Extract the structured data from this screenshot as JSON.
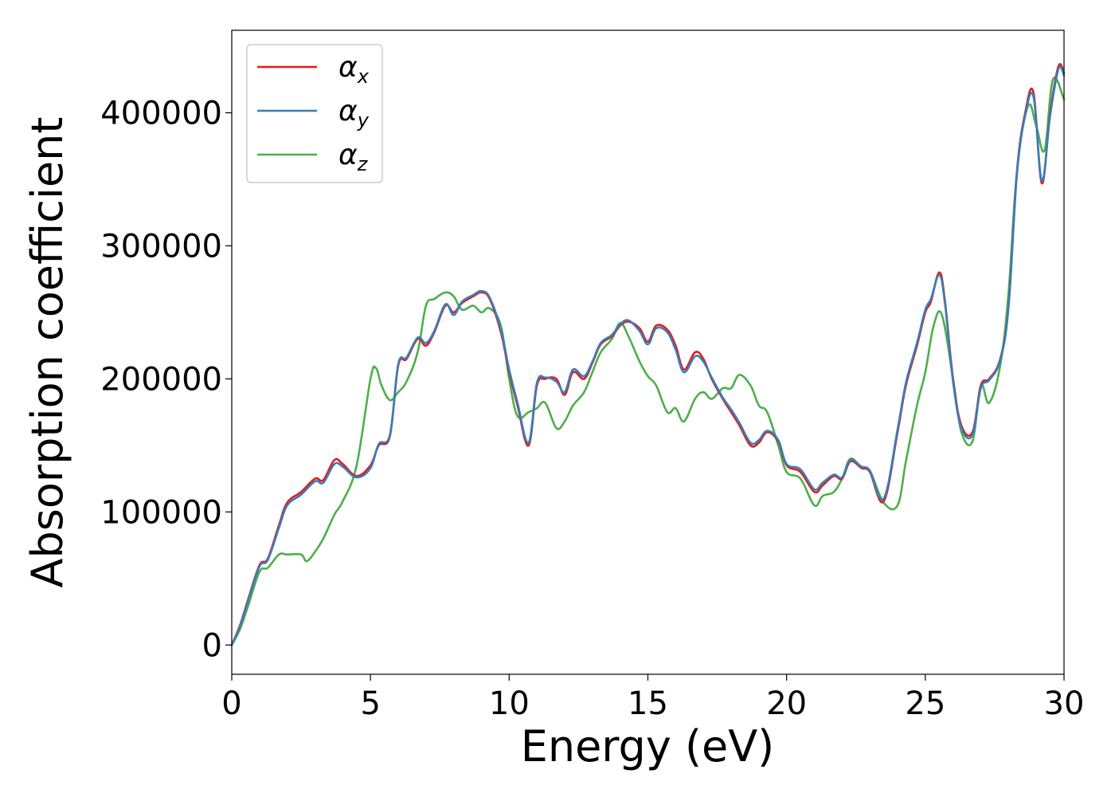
{
  "chart_data": {
    "type": "line",
    "xlabel": "Energy (eV)",
    "ylabel": "Absorption coefficient",
    "xlim": [
      0,
      30
    ],
    "ylim": [
      -22000,
      462000
    ],
    "xticks": [
      0,
      5,
      10,
      15,
      20,
      25,
      30
    ],
    "xtick_labels": [
      "0",
      "5",
      "10",
      "15",
      "20",
      "25",
      "30"
    ],
    "yticks": [
      0,
      100000,
      200000,
      300000,
      400000
    ],
    "ytick_labels": [
      "0",
      "100000",
      "200000",
      "300000",
      "400000"
    ],
    "legend_position": "upper-left",
    "grid": false,
    "series": [
      {
        "name": "αx",
        "symbol": "α",
        "subscript": "x",
        "color": "#e41a1c",
        "x": [
          0,
          0.3,
          0.6,
          1.0,
          1.3,
          1.7,
          2.0,
          2.5,
          3.0,
          3.3,
          3.7,
          4.0,
          4.5,
          5.0,
          5.3,
          5.7,
          6.0,
          6.3,
          6.7,
          7.0,
          7.3,
          7.7,
          8.0,
          8.3,
          8.7,
          9.0,
          9.3,
          9.7,
          10.0,
          10.3,
          10.7,
          11.0,
          11.3,
          11.7,
          12.0,
          12.3,
          12.7,
          13.0,
          13.3,
          13.7,
          14.0,
          14.3,
          14.7,
          15.0,
          15.3,
          15.7,
          16.0,
          16.3,
          16.7,
          17.0,
          17.3,
          17.7,
          18.0,
          18.3,
          18.7,
          19.0,
          19.3,
          19.7,
          20.0,
          20.5,
          21.0,
          21.3,
          21.7,
          22.0,
          22.3,
          22.7,
          23.0,
          23.5,
          24.0,
          24.3,
          24.7,
          25.0,
          25.2,
          25.5,
          25.7,
          26.0,
          26.3,
          26.7,
          27.0,
          27.3,
          27.7,
          28.0,
          28.3,
          28.6,
          28.9,
          29.2,
          29.5,
          29.8,
          30.0
        ],
        "values": [
          0,
          15000,
          35000,
          60000,
          65000,
          90000,
          107000,
          115000,
          125000,
          124000,
          139000,
          136000,
          127000,
          135000,
          150000,
          157000,
          210000,
          215000,
          230000,
          225000,
          235000,
          255000,
          250000,
          257000,
          262000,
          265000,
          260000,
          235000,
          205000,
          180000,
          150000,
          195000,
          200000,
          200000,
          188000,
          205000,
          200000,
          212000,
          226000,
          232000,
          240000,
          243000,
          238000,
          228000,
          240000,
          237000,
          225000,
          207000,
          220000,
          215000,
          200000,
          185000,
          175000,
          165000,
          150000,
          152000,
          160000,
          153000,
          135000,
          130000,
          115000,
          120000,
          127000,
          125000,
          138000,
          133000,
          130000,
          108000,
          160000,
          195000,
          225000,
          250000,
          258000,
          280000,
          260000,
          200000,
          165000,
          160000,
          195000,
          200000,
          215000,
          255000,
          355000,
          400000,
          415000,
          347000,
          400000,
          435000,
          430000
        ]
      },
      {
        "name": "αy",
        "symbol": "α",
        "subscript": "y",
        "color": "#377eb8",
        "x": [
          0,
          0.3,
          0.6,
          1.0,
          1.3,
          1.7,
          2.0,
          2.5,
          3.0,
          3.3,
          3.7,
          4.0,
          4.5,
          5.0,
          5.3,
          5.7,
          6.0,
          6.3,
          6.7,
          7.0,
          7.3,
          7.7,
          8.0,
          8.3,
          8.7,
          9.0,
          9.3,
          9.7,
          10.0,
          10.3,
          10.7,
          11.0,
          11.3,
          11.7,
          12.0,
          12.3,
          12.7,
          13.0,
          13.3,
          13.7,
          14.0,
          14.3,
          14.7,
          15.0,
          15.3,
          15.7,
          16.0,
          16.3,
          16.7,
          17.0,
          17.3,
          17.7,
          18.0,
          18.3,
          18.7,
          19.0,
          19.3,
          19.7,
          20.0,
          20.5,
          21.0,
          21.3,
          21.7,
          22.0,
          22.3,
          22.7,
          23.0,
          23.5,
          24.0,
          24.3,
          24.7,
          25.0,
          25.2,
          25.5,
          25.7,
          26.0,
          26.3,
          26.7,
          27.0,
          27.3,
          27.7,
          28.0,
          28.3,
          28.6,
          28.9,
          29.2,
          29.5,
          29.8,
          30.0
        ],
        "values": [
          0,
          14000,
          34000,
          59000,
          64000,
          88000,
          105000,
          113000,
          123000,
          122000,
          136000,
          134000,
          126000,
          133000,
          151000,
          158000,
          211000,
          216000,
          231000,
          227000,
          236000,
          256000,
          248000,
          258000,
          263000,
          266000,
          261000,
          237000,
          207000,
          182000,
          152000,
          197000,
          201000,
          198000,
          190000,
          207000,
          202000,
          213000,
          227000,
          233000,
          241000,
          244000,
          236000,
          226000,
          238000,
          235000,
          222000,
          205000,
          217000,
          213000,
          201000,
          186000,
          177000,
          167000,
          152000,
          154000,
          161000,
          154000,
          136000,
          132000,
          117000,
          122000,
          128000,
          126000,
          139000,
          134000,
          131000,
          110000,
          162000,
          197000,
          227000,
          252000,
          260000,
          278000,
          258000,
          198000,
          163000,
          158000,
          193000,
          199000,
          214000,
          254000,
          353000,
          398000,
          412000,
          349000,
          398000,
          433000,
          428000
        ]
      },
      {
        "name": "αz",
        "symbol": "α",
        "subscript": "z",
        "color": "#4daf4a",
        "x": [
          0,
          0.3,
          0.6,
          1.0,
          1.3,
          1.7,
          2.0,
          2.5,
          2.7,
          3.0,
          3.3,
          3.7,
          4.0,
          4.5,
          5.0,
          5.2,
          5.4,
          5.7,
          6.0,
          6.3,
          6.7,
          7.0,
          7.3,
          7.7,
          8.0,
          8.3,
          8.7,
          9.0,
          9.3,
          9.7,
          10.0,
          10.3,
          10.7,
          11.0,
          11.3,
          11.7,
          12.0,
          12.3,
          12.7,
          13.0,
          13.3,
          13.7,
          14.0,
          14.3,
          14.7,
          15.0,
          15.3,
          15.7,
          16.0,
          16.3,
          16.7,
          17.0,
          17.3,
          17.7,
          18.0,
          18.3,
          18.7,
          19.0,
          19.3,
          19.7,
          20.0,
          20.5,
          21.0,
          21.3,
          21.7,
          22.0,
          22.3,
          22.7,
          23.0,
          23.5,
          24.0,
          24.3,
          24.7,
          25.0,
          25.3,
          25.6,
          26.0,
          26.3,
          26.7,
          27.0,
          27.3,
          27.7,
          28.0,
          28.3,
          28.7,
          29.0,
          29.3,
          29.6,
          30.0
        ],
        "values": [
          0,
          12000,
          30000,
          55000,
          58000,
          68000,
          68000,
          68000,
          63000,
          70000,
          80000,
          98000,
          108000,
          135000,
          200000,
          208000,
          195000,
          184000,
          190000,
          198000,
          220000,
          255000,
          260000,
          265000,
          262000,
          252000,
          255000,
          250000,
          253000,
          240000,
          200000,
          172000,
          175000,
          178000,
          182000,
          163000,
          168000,
          180000,
          190000,
          205000,
          220000,
          230000,
          242000,
          232000,
          213000,
          202000,
          195000,
          175000,
          178000,
          168000,
          185000,
          190000,
          185000,
          193000,
          193000,
          203000,
          195000,
          180000,
          175000,
          150000,
          130000,
          125000,
          105000,
          112000,
          115000,
          125000,
          140000,
          133000,
          131000,
          107000,
          105000,
          138000,
          180000,
          205000,
          240000,
          248000,
          200000,
          160000,
          153000,
          195000,
          182000,
          210000,
          265000,
          355000,
          405000,
          390000,
          372000,
          425000,
          410000
        ]
      }
    ]
  }
}
